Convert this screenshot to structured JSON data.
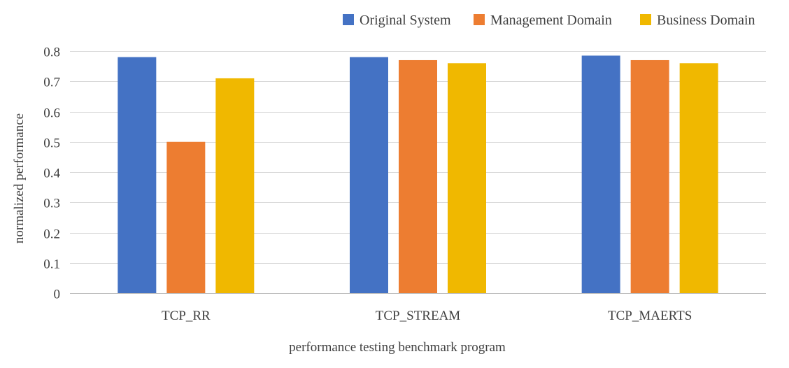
{
  "chart_data": {
    "type": "bar",
    "title": "",
    "xlabel": "performance testing benchmark program",
    "ylabel": "normalized performance",
    "categories": [
      "TCP_RR",
      "TCP_STREAM",
      "TCP_MAERTS"
    ],
    "series": [
      {
        "name": "Original System",
        "color": "#4472c4",
        "values": [
          0.78,
          0.78,
          0.785
        ]
      },
      {
        "name": "Management Domain",
        "color": "#ed7d31",
        "values": [
          0.5,
          0.77,
          0.77
        ]
      },
      {
        "name": "Business Domain",
        "color": "#f0b800",
        "values": [
          0.71,
          0.76,
          0.76
        ]
      }
    ],
    "ylim": [
      0,
      0.8
    ],
    "yticks": [
      0,
      0.1,
      0.2,
      0.3,
      0.4,
      0.5,
      0.6,
      0.7,
      0.8
    ],
    "ytick_labels": [
      "0",
      "0.1",
      "0.2",
      "0.3",
      "0.4",
      "0.5",
      "0.6",
      "0.7",
      "0.8"
    ],
    "grid": true,
    "legend_position": "top-right"
  }
}
